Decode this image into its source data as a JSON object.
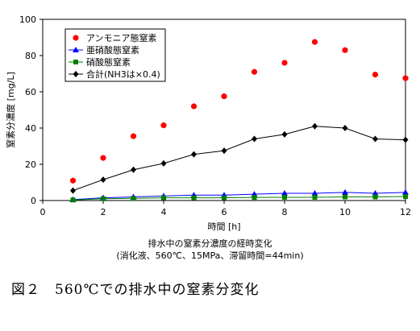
{
  "chart_data": {
    "type": "scatter",
    "xlabel": "時間 [h]",
    "ylabel": "窒素分濃度 [mg/L]",
    "xlim": [
      0,
      12
    ],
    "ylim": [
      0,
      100
    ],
    "x_ticks": [
      0,
      2,
      4,
      6,
      8,
      10,
      12
    ],
    "y_ticks": [
      0,
      20,
      40,
      60,
      80,
      100
    ],
    "grid": false,
    "legend_position": "top-left",
    "series": [
      {
        "name": "アンモニア態窒素",
        "marker": "circle",
        "line": false,
        "color": "#ff0000",
        "x": [
          1,
          2,
          3,
          4,
          5,
          6,
          7,
          8,
          9,
          10,
          11,
          12
        ],
        "values": [
          11,
          23.5,
          35.5,
          41.5,
          52,
          57.5,
          71,
          76,
          87.5,
          83,
          69.5,
          67.5
        ]
      },
      {
        "name": "亜硝酸態窒素",
        "marker": "triangle",
        "line": true,
        "color": "#0000ff",
        "x": [
          1,
          2,
          3,
          4,
          5,
          6,
          7,
          8,
          9,
          10,
          11,
          12
        ],
        "values": [
          0.5,
          1.5,
          2,
          2.5,
          3,
          3,
          3.5,
          4,
          4,
          4.5,
          4,
          4.5
        ]
      },
      {
        "name": "硝酸態窒素",
        "marker": "square",
        "line": true,
        "color": "#008000",
        "x": [
          1,
          2,
          3,
          4,
          5,
          6,
          7,
          8,
          9,
          10,
          11,
          12
        ],
        "values": [
          0.3,
          1,
          1.2,
          1.5,
          1.5,
          1.5,
          1.7,
          1.8,
          1.8,
          2,
          2,
          2.2
        ]
      },
      {
        "name": "合計(NH3は×0.4)",
        "marker": "diamond",
        "line": true,
        "color": "#000000",
        "x": [
          1,
          2,
          3,
          4,
          5,
          6,
          7,
          8,
          9,
          10,
          11,
          12
        ],
        "values": [
          5.5,
          11.5,
          17,
          20.5,
          25.5,
          27.5,
          34,
          36.5,
          41,
          40,
          34,
          33.5
        ]
      }
    ]
  },
  "notes": {
    "line1": "排水中の窒素分濃度の経時変化",
    "line2": "(消化液、560℃、15MPa、滞留時間=44min)"
  },
  "caption": "図２　560℃での排水中の窒素分変化"
}
